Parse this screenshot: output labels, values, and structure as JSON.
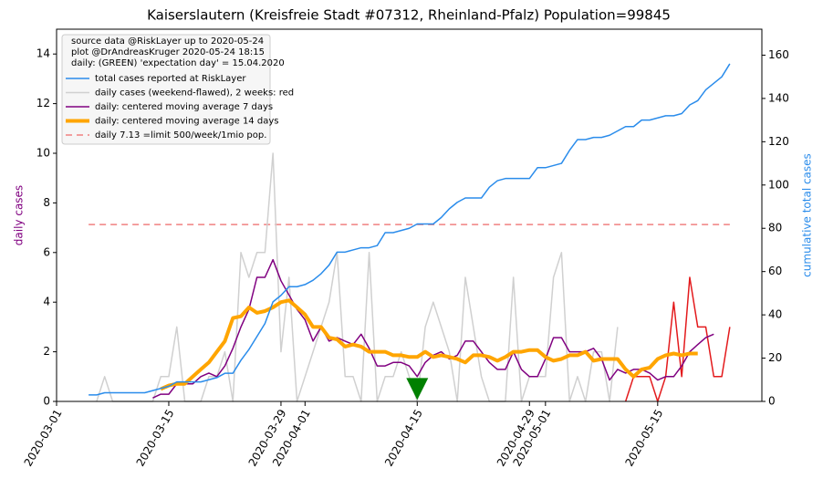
{
  "chart_data": {
    "type": "line",
    "title": "Kaiserslautern (Kreisfreie Stadt #07312, Rheinland-Pfalz) Population=99845",
    "ylabel": "daily cases",
    "y2label": "cumulative total cases",
    "legend": "upper left",
    "legend_header": [
      "source data @RiskLayer up to 2020-05-24",
      "plot @DrAndreasKruger 2020-05-24 18:15",
      "daily: (GREEN) 'expectation day' = 15.04.2020"
    ],
    "xlim": [
      "2020-03-01",
      "2020-05-28"
    ],
    "xticks": [
      "2020-03-01",
      "2020-03-15",
      "2020-03-29",
      "2020-04-01",
      "2020-04-15",
      "2020-04-29",
      "2020-05-01",
      "2020-05-15"
    ],
    "ylim": [
      0,
      15
    ],
    "yticks": [
      0,
      2,
      4,
      6,
      8,
      10,
      12,
      14
    ],
    "y2lim": [
      0,
      172
    ],
    "y2ticks": [
      0,
      20,
      40,
      60,
      80,
      100,
      120,
      140,
      160
    ],
    "x": [
      "2020-03-05",
      "2020-03-06",
      "2020-03-07",
      "2020-03-08",
      "2020-03-09",
      "2020-03-10",
      "2020-03-11",
      "2020-03-12",
      "2020-03-13",
      "2020-03-14",
      "2020-03-15",
      "2020-03-16",
      "2020-03-17",
      "2020-03-18",
      "2020-03-19",
      "2020-03-20",
      "2020-03-21",
      "2020-03-22",
      "2020-03-23",
      "2020-03-24",
      "2020-03-25",
      "2020-03-26",
      "2020-03-27",
      "2020-03-28",
      "2020-03-29",
      "2020-03-30",
      "2020-03-31",
      "2020-04-01",
      "2020-04-02",
      "2020-04-03",
      "2020-04-04",
      "2020-04-05",
      "2020-04-06",
      "2020-04-07",
      "2020-04-08",
      "2020-04-09",
      "2020-04-10",
      "2020-04-11",
      "2020-04-12",
      "2020-04-13",
      "2020-04-14",
      "2020-04-15",
      "2020-04-16",
      "2020-04-17",
      "2020-04-18",
      "2020-04-19",
      "2020-04-20",
      "2020-04-21",
      "2020-04-22",
      "2020-04-23",
      "2020-04-24",
      "2020-04-25",
      "2020-04-26",
      "2020-04-27",
      "2020-04-28",
      "2020-04-29",
      "2020-04-30",
      "2020-05-01",
      "2020-05-02",
      "2020-05-03",
      "2020-05-04",
      "2020-05-05",
      "2020-05-06",
      "2020-05-07",
      "2020-05-08",
      "2020-05-09",
      "2020-05-10",
      "2020-05-11",
      "2020-05-12",
      "2020-05-13",
      "2020-05-14",
      "2020-05-15",
      "2020-05-16",
      "2020-05-17",
      "2020-05-18",
      "2020-05-19",
      "2020-05-20",
      "2020-05-21",
      "2020-05-22",
      "2020-05-23",
      "2020-05-24"
    ],
    "series": [
      {
        "name": "total cases reported at RiskLayer",
        "color": "#2a8ceb",
        "width": 1.5,
        "axis": "y2",
        "values": [
          3,
          3,
          4,
          4,
          4,
          4,
          4,
          4,
          5,
          6,
          7,
          9,
          9,
          9,
          9,
          10,
          11,
          13,
          13,
          19,
          24,
          30,
          36,
          46,
          49,
          53,
          53,
          54,
          56,
          59,
          63,
          69,
          69,
          70,
          71,
          71,
          72,
          78,
          78,
          79,
          80,
          82,
          82,
          82,
          85,
          89,
          92,
          94,
          94,
          94,
          99,
          102,
          103,
          103,
          103,
          103,
          108,
          108,
          109,
          110,
          116,
          121,
          121,
          122,
          122,
          123,
          125,
          127,
          127,
          130,
          130,
          131,
          132,
          132,
          133,
          137,
          139,
          144,
          147,
          150,
          156
        ]
      },
      {
        "name": "daily cases (weekend-flawed), 2 weeks: red",
        "color": "#d0d0d0",
        "width": 1.5,
        "values": [
          null,
          0,
          1,
          0,
          0,
          0,
          0,
          0,
          0,
          1,
          1,
          3,
          0,
          0,
          0,
          1,
          1,
          2,
          0,
          6,
          5,
          6,
          6,
          10,
          2,
          5,
          0,
          1,
          2,
          3,
          4,
          6,
          1,
          1,
          0,
          6,
          0,
          1,
          1,
          2,
          1,
          0,
          3,
          4,
          3,
          2,
          0,
          5,
          3,
          1,
          0,
          0,
          0,
          5,
          0,
          1,
          1,
          1,
          5,
          6,
          0,
          1,
          0,
          2,
          2,
          0,
          3,
          null,
          null,
          null,
          null,
          null,
          null,
          null,
          null,
          null,
          null,
          null,
          null,
          null,
          null
        ]
      },
      {
        "color": "#e31a1c",
        "width": 1.5,
        "values": [
          null,
          null,
          null,
          null,
          null,
          null,
          null,
          null,
          null,
          null,
          null,
          null,
          null,
          null,
          null,
          null,
          null,
          null,
          null,
          null,
          null,
          null,
          null,
          null,
          null,
          null,
          null,
          null,
          null,
          null,
          null,
          null,
          null,
          null,
          null,
          null,
          null,
          null,
          null,
          null,
          null,
          null,
          null,
          null,
          null,
          null,
          null,
          null,
          null,
          null,
          null,
          null,
          null,
          null,
          null,
          null,
          null,
          null,
          null,
          null,
          null,
          null,
          null,
          null,
          null,
          null,
          null,
          0,
          1,
          1,
          1,
          0,
          1,
          4,
          1,
          5,
          3,
          3,
          1,
          1,
          3
        ]
      },
      {
        "name": "daily: centered moving average 7 days",
        "color": "#800080",
        "width": 1.5,
        "values": [
          null,
          null,
          null,
          null,
          null,
          null,
          null,
          null,
          0.14,
          0.29,
          0.29,
          0.71,
          0.71,
          0.71,
          1.0,
          1.14,
          1.0,
          1.43,
          2.14,
          3.0,
          3.71,
          5.0,
          5.0,
          5.71,
          4.86,
          4.29,
          3.71,
          3.29,
          2.43,
          3.0,
          2.43,
          2.57,
          2.43,
          2.29,
          2.71,
          2.14,
          1.43,
          1.43,
          1.57,
          1.57,
          1.43,
          1.0,
          1.57,
          1.86,
          2.0,
          1.71,
          1.86,
          2.43,
          2.43,
          2.0,
          1.57,
          1.29,
          1.29,
          2.0,
          1.29,
          1.0,
          1.0,
          1.71,
          2.57,
          2.57,
          2.0,
          2.0,
          2.0,
          2.14,
          1.71,
          0.86,
          1.29,
          1.14,
          1.29,
          1.29,
          1.14,
          0.86,
          1.0,
          1.0,
          1.43,
          2.0,
          2.29,
          2.57,
          2.71,
          null,
          null
        ]
      },
      {
        "name": "daily: centered moving average 14 days",
        "color": "#ffa500",
        "width": 4,
        "values": [
          null,
          null,
          null,
          null,
          null,
          null,
          null,
          null,
          null,
          0.5,
          0.64,
          0.71,
          0.71,
          1.0,
          1.29,
          1.57,
          2.0,
          2.43,
          3.36,
          3.43,
          3.79,
          3.57,
          3.64,
          3.79,
          4.0,
          4.07,
          3.79,
          3.5,
          3.0,
          3.0,
          2.57,
          2.5,
          2.21,
          2.29,
          2.21,
          2.0,
          2.0,
          2.0,
          1.86,
          1.86,
          1.79,
          1.79,
          2.0,
          1.79,
          1.86,
          1.79,
          1.71,
          1.57,
          1.86,
          1.86,
          1.79,
          1.64,
          1.79,
          2.0,
          2.0,
          2.07,
          2.07,
          1.79,
          1.64,
          1.71,
          1.86,
          1.86,
          2.0,
          1.64,
          1.71,
          1.71,
          1.71,
          1.29,
          1.0,
          1.29,
          1.36,
          1.71,
          1.86,
          1.93,
          1.86,
          1.93,
          1.93,
          null,
          null,
          null,
          null
        ]
      }
    ],
    "reference": {
      "name": "daily 7.13 =limit 500/week/1mio pop.",
      "value": 7.13,
      "color": "#f08080"
    },
    "marker": {
      "x": "2020-04-15",
      "value": 0.5,
      "color": "#008000"
    }
  }
}
